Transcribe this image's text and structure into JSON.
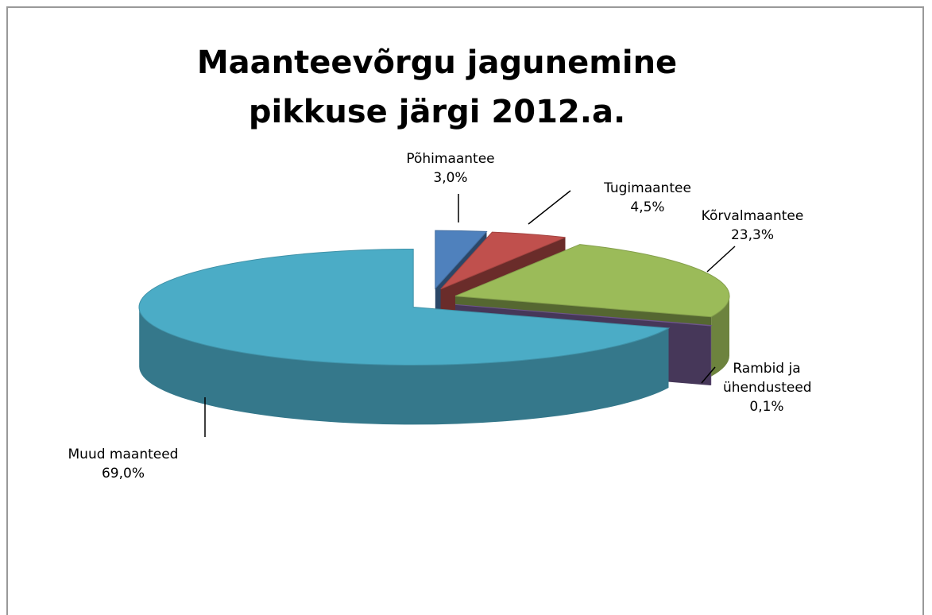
{
  "chart_data": {
    "type": "pie3d",
    "title": "Maanteevõrgu jagunemine pikkuse järgi 2012.a.",
    "categories": [
      "Põhimaantee",
      "Tugimaantee",
      "Kõrvalmaantee",
      "Rambid ja ühendusteed",
      "Muud maanteed"
    ],
    "values": [
      3.0,
      4.5,
      23.3,
      0.1,
      69.0
    ],
    "value_labels": [
      "3,0%",
      "4,5%",
      "23,3%",
      "0,1%",
      "69,0%"
    ],
    "colors": [
      "#4f81bd",
      "#c0504d",
      "#9bbb59",
      "#8064a2",
      "#4bacc6"
    ]
  }
}
